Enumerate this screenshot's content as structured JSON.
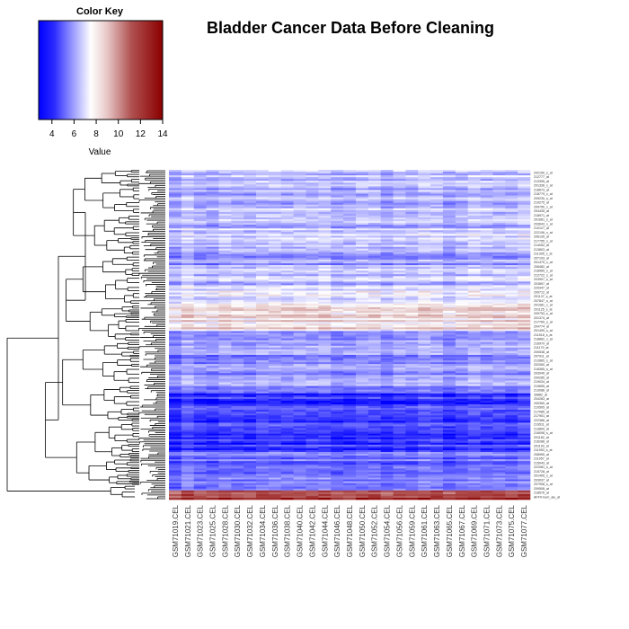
{
  "chart_data": {
    "type": "heatmap",
    "title": "Bladder Cancer Data Before Cleaning",
    "color_key": {
      "title": "Color Key",
      "xlabel": "Value",
      "range": [
        2.8,
        14
      ],
      "ticks": [
        4,
        6,
        8,
        10,
        12,
        14
      ],
      "colors": {
        "low": "#0000ff",
        "mid": "#ffffff",
        "high": "#8b0000"
      },
      "mid_value": 8.4
    },
    "columns": [
      "GSM71019.CEL",
      "GSM71021.CEL",
      "GSM71023.CEL",
      "GSM71025.CEL",
      "GSM71028.CEL",
      "GSM71030.CEL",
      "GSM71032.CEL",
      "GSM71034.CEL",
      "GSM71036.CEL",
      "GSM71038.CEL",
      "GSM71040.CEL",
      "GSM71042.CEL",
      "GSM71044.CEL",
      "GSM71046.CEL",
      "GSM71048.CEL",
      "GSM71050.CEL",
      "GSM71052.CEL",
      "GSM71054.CEL",
      "GSM71056.CEL",
      "GSM71059.CEL",
      "GSM71061.CEL",
      "GSM71063.CEL",
      "GSM71065.CEL",
      "GSM71067.CEL",
      "GSM71069.CEL",
      "GSM71071.CEL",
      "GSM71073.CEL",
      "GSM71075.CEL",
      "GSM71077.CEL"
    ],
    "row_labels": [
      "202150_s_at",
      "212777_at",
      "213395_at",
      "201336_x_at",
      "218673_at",
      "218779_x_at",
      "209230_s_at",
      "219275_at",
      "209750_x_at",
      "204435_at",
      "218971_at",
      "201661_s_at",
      "203643_x_at",
      "210127_at",
      "222106_x_at",
      "206135_at",
      "217755_s_at",
      "214052_at",
      "213803_at",
      "211395_x_at",
      "207103_at",
      "201479_x_at",
      "208482_at",
      "218965_s_at",
      "212722_s_at",
      "203907_s_at",
      "203897_at",
      "220347_at",
      "209712_at",
      "201137_s_at",
      "207847_s_at",
      "201981_x_at",
      "201125_s_at",
      "209753_s_at",
      "201374_at",
      "217769_s_at",
      "204774_at",
      "201499_s_at",
      "211518_s_at",
      "218862_x_at",
      "216979_at",
      "211179_at",
      "200538_at",
      "207911_at",
      "212865_s_at",
      "202060_at",
      "218365_s_at",
      "203040_at",
      "200285_at",
      "219034_at",
      "219655_at",
      "213088_at",
      "39882_at",
      "204283_at",
      "200350_at",
      "210505_at",
      "217085_at",
      "217901_at",
      "222386_at",
      "219511_at",
      "213809_at",
      "216098_s_at",
      "201182_at",
      "216288_at",
      "201193_at",
      "211953_s_at",
      "208955_at",
      "211957_at",
      "215043_at",
      "222081_s_at",
      "215728_at",
      "201405_s_at",
      "203037_at",
      "207908_s_at",
      "209508_at",
      "218576_at",
      "AFFX-hum_alu_at"
    ],
    "values_description_bands": [
      {
        "from_row": 0.0,
        "to_row": 0.18,
        "mean": 6.8
      },
      {
        "from_row": 0.18,
        "to_row": 0.25,
        "mean": 7.3
      },
      {
        "from_row": 0.25,
        "to_row": 0.3,
        "mean": 6.2
      },
      {
        "from_row": 0.3,
        "to_row": 0.36,
        "mean": 7.0
      },
      {
        "from_row": 0.36,
        "to_row": 0.41,
        "mean": 7.9
      },
      {
        "from_row": 0.41,
        "to_row": 0.49,
        "mean": 9.0
      },
      {
        "from_row": 0.49,
        "to_row": 0.68,
        "mean": 6.0
      },
      {
        "from_row": 0.68,
        "to_row": 0.85,
        "mean": 4.0
      },
      {
        "from_row": 0.85,
        "to_row": 0.975,
        "mean": 5.2
      },
      {
        "from_row": 0.975,
        "to_row": 1.0,
        "mean": 12.5
      }
    ]
  }
}
